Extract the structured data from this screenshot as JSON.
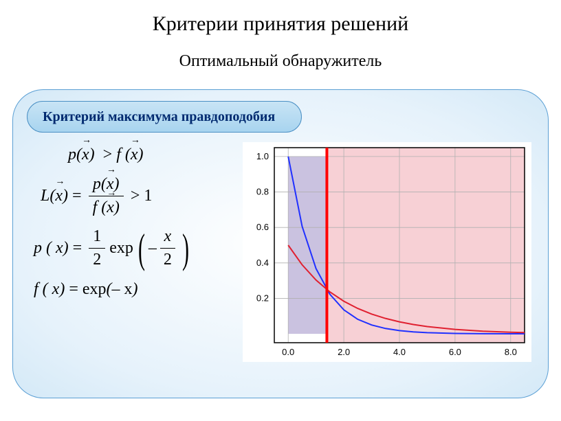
{
  "title": "Критерии принятия решений",
  "subtitle": "Оптимальный обнаружитель",
  "badge": "Критерий максимума правдоподобия",
  "formulas": {
    "f1_lhs_fn": "p",
    "f1_op": ">",
    "f1_rhs_fn": "f",
    "f2_L": "L",
    "f2_eq": "=",
    "f2_gt1": "> 1",
    "f3_p": "p",
    "f3_half_num": "1",
    "f3_half_den": "2",
    "f3_exp": "exp",
    "f3_neg": "–",
    "f3_x": "x",
    "f3_2": "2",
    "f4_f": "f",
    "f4_exp": "exp",
    "f4_negx": "– x"
  },
  "chart": {
    "xlim": [
      -0.5,
      8.5
    ],
    "ylim": [
      -0.05,
      1.05
    ],
    "xticks": [
      0.0,
      2.0,
      4.0,
      6.0,
      8.0
    ],
    "yticks": [
      0.2,
      0.4,
      0.6,
      0.8,
      1.0
    ],
    "grid_color": "#b0b0b0",
    "axis_color": "#000000",
    "bg_left": "#cac2e0",
    "bg_right": "#f7d0d5",
    "threshold_x": 1.39,
    "threshold_color": "#ff0000",
    "threshold_width": 4,
    "curves": [
      {
        "name": "f(x)=exp(-x)",
        "color": "#2030ff",
        "width": 2,
        "points": [
          [
            0.0,
            1.0
          ],
          [
            0.5,
            0.6065
          ],
          [
            1.0,
            0.3679
          ],
          [
            1.5,
            0.2231
          ],
          [
            2.0,
            0.1353
          ],
          [
            2.5,
            0.0821
          ],
          [
            3.0,
            0.0498
          ],
          [
            3.5,
            0.0302
          ],
          [
            4.0,
            0.0183
          ],
          [
            4.5,
            0.0111
          ],
          [
            5.0,
            0.0067
          ],
          [
            6.0,
            0.0025
          ],
          [
            7.0,
            0.0009
          ],
          [
            8.0,
            0.0003
          ],
          [
            8.5,
            0.0002
          ]
        ]
      },
      {
        "name": "p(x)=0.5exp(-x/2)",
        "color": "#e02030",
        "width": 2,
        "points": [
          [
            0.0,
            0.5
          ],
          [
            0.5,
            0.3894
          ],
          [
            1.0,
            0.3033
          ],
          [
            1.5,
            0.2362
          ],
          [
            2.0,
            0.1839
          ],
          [
            2.5,
            0.1433
          ],
          [
            3.0,
            0.1116
          ],
          [
            3.5,
            0.0869
          ],
          [
            4.0,
            0.0677
          ],
          [
            4.5,
            0.0527
          ],
          [
            5.0,
            0.041
          ],
          [
            6.0,
            0.0249
          ],
          [
            7.0,
            0.0151
          ],
          [
            8.0,
            0.0092
          ],
          [
            8.5,
            0.0071
          ]
        ]
      }
    ]
  }
}
